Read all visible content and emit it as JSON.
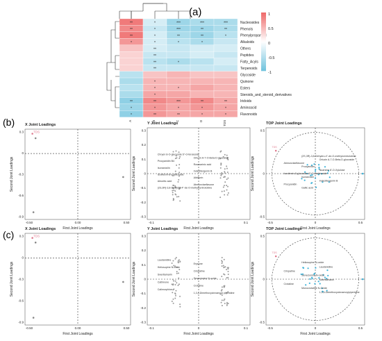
{
  "panel_labels": [
    "(a)",
    "(b)",
    "(c)"
  ],
  "colors": {
    "red": "#ee6b6b",
    "blue": "#8ccde2",
    "pink": "#e07b8f",
    "cyan": "#3fb3d9"
  },
  "chart_data": [
    {
      "type": "heatmap",
      "panel": "(a)",
      "rows": [
        "Nucleosides",
        "Phenols",
        "Phenylpropanoid",
        "Alkaloids",
        "Others",
        "Peptides",
        "Fatty_Acyls",
        "Terpenoids",
        "Glycoside",
        "Quinone",
        "Esters",
        "Steroids_and_steroid_derivatives",
        "Iridoids",
        "Aminoacid",
        "Flavonoids"
      ],
      "cols": [
        "A",
        "B",
        "C",
        "D",
        "TDS"
      ],
      "values": [
        [
          0.9,
          -0.3,
          -0.7,
          -0.6,
          -0.6
        ],
        [
          0.8,
          -0.4,
          -0.7,
          -0.7,
          -0.6
        ],
        [
          0.9,
          -0.3,
          -0.6,
          -0.7,
          -0.5
        ],
        [
          0.7,
          -0.3,
          -0.5,
          -0.6,
          -0.4
        ],
        [
          0.4,
          -0.3,
          -0.4,
          -0.3,
          -0.3
        ],
        [
          0.3,
          -0.4,
          -0.4,
          -0.3,
          -0.4
        ],
        [
          0.3,
          -0.5,
          -0.6,
          -0.5,
          -0.3
        ],
        [
          0.3,
          -0.4,
          -0.4,
          -0.4,
          -0.4
        ],
        [
          -0.5,
          0.4,
          0.5,
          0.4,
          0.4
        ],
        [
          -0.6,
          0.5,
          0.5,
          0.5,
          0.5
        ],
        [
          -0.5,
          0.5,
          0.5,
          0.6,
          0.5
        ],
        [
          -0.6,
          0.6,
          0.6,
          0.5,
          0.5
        ],
        [
          -0.8,
          0.8,
          0.7,
          0.8,
          0.6
        ],
        [
          -0.7,
          0.7,
          0.6,
          0.7,
          0.6
        ],
        [
          -0.8,
          0.7,
          0.6,
          0.6,
          0.6
        ]
      ],
      "stars": [
        [
          "**",
          "*",
          "***",
          "***",
          "***"
        ],
        [
          "**",
          "*",
          "***",
          "**",
          "**"
        ],
        [
          "**",
          "*",
          "**",
          "**",
          "*"
        ],
        [
          "*",
          "*",
          "*",
          "*",
          ""
        ],
        [
          "",
          "**",
          "",
          "",
          ""
        ],
        [
          "",
          "**",
          "",
          "",
          ""
        ],
        [
          "",
          "**",
          "*",
          "",
          ""
        ],
        [
          "",
          "**",
          "",
          "",
          ""
        ],
        [
          "",
          "",
          "",
          "",
          ""
        ],
        [
          "",
          "*",
          "",
          "",
          ""
        ],
        [
          "",
          "*",
          "*",
          "",
          ""
        ],
        [
          "",
          "*",
          "",
          "",
          ""
        ],
        [
          "**",
          "**",
          "***",
          "**",
          "**"
        ],
        [
          "*",
          "*",
          "*",
          "*",
          "*"
        ],
        [
          "*",
          "**",
          "**",
          "*",
          "*"
        ]
      ],
      "legend_ticks": [
        "1",
        "0.5",
        "0",
        "-0.5",
        "-1"
      ],
      "ylim": [
        -1,
        1
      ]
    },
    {
      "type": "scatter",
      "panel": "(b)",
      "title": "X Joint Loadings",
      "xlabel": "First Joint Loadings",
      "ylabel": "Second Joint Loadings",
      "xticks": [
        "-0.50",
        "0.00",
        "0.50"
      ],
      "yticks": [
        "0.3",
        "0",
        "-0.3",
        "-0.6",
        "-0.9"
      ],
      "point_labels": [
        "TDS"
      ]
    },
    {
      "type": "scatter",
      "panel": "(b)",
      "title": "Y Joint Loadings",
      "xlabel": "First Joint Loadings",
      "ylabel": "Second Joint Loadings",
      "xticks": [
        "-0.1",
        "0",
        "0.1"
      ],
      "yticks": [
        "0.3",
        "0.2",
        "0.1",
        "0",
        "-0.1",
        "-0.2",
        "-0.3"
      ],
      "point_labels": [
        "Chryen 8-O-glucoside 6''-O-feruloside",
        "Orlucin A-7-O-Beta-D-glucoside",
        "Procyanidin B4",
        "Rosmarinic acid",
        "Isonarciclin",
        "Indeclitergenin B",
        "Isovitexin-8-o-glucoside",
        "Albiflorin",
        "Aleuritic acid",
        "Abmunvlaeflavone",
        "(2S,3R)-3,8-Dehydro-4''-de-O-methylcentrolobine"
      ]
    },
    {
      "type": "scatter",
      "panel": "(b)",
      "title": "TOP Joint Loadings",
      "xlabel": "First Joint Loadings",
      "ylabel": "Second Joint Loadings",
      "xticks": [
        "-0.5",
        "0",
        "0.5"
      ],
      "yticks": [
        "0.5",
        "0",
        "-0.5"
      ],
      "point_labels": [
        "TDS",
        "(2S,3R)-3,8-Dehydro-4''-de-O-methylcentrolobine",
        "Orlucin A-7-O-Beta-D-glucoside",
        "Abmunvlaeflavone",
        "Procyanidin",
        "Nuarsine 8'-O-Xylulose",
        "Isovitexin-8-glucoside-6''-C-arabinoside",
        "Isonarciclin",
        "Indeclitergenin B",
        "Procyanidin",
        "Gallic acid"
      ]
    },
    {
      "type": "scatter",
      "panel": "(c)",
      "title": "X Joint Loadings",
      "xlabel": "First Joint Loadings",
      "ylabel": "Second Joint Loadings",
      "xticks": [
        "-0.50",
        "0.00",
        "0.50"
      ],
      "yticks": [
        "0.3",
        "0",
        "-0.3",
        "-0.6",
        "-0.9"
      ],
      "point_labels": [
        "TDS"
      ]
    },
    {
      "type": "scatter",
      "panel": "(c)",
      "title": "Y Joint Loadings",
      "xlabel": "First Joint Loadings",
      "ylabel": "Second Joint Loadings",
      "xticks": [
        "-0.1",
        "0",
        "0.1"
      ],
      "yticks": [
        "0.3",
        "0.2",
        "0.1",
        "0",
        "-0.1",
        "-0.2",
        "-0.3"
      ],
      "point_labels": [
        "Laudanidine",
        "Erysone",
        "Heliosupine N-oxide",
        "Crispatine",
        "Swertiamarin",
        "Senecionine N-oxide",
        "Cathinone",
        "Crotaline",
        "Calimorphine",
        "1,3,4-Dimethoxycinnamoyl piperidine"
      ]
    },
    {
      "type": "scatter",
      "panel": "(c)",
      "title": "TOP Joint Loadings",
      "xlabel": "First Joint Loadings",
      "ylabel": "Second Joint Loadings",
      "xticks": [
        "-0.5",
        "0",
        "0.5"
      ],
      "yticks": [
        "0.5",
        "0",
        "-0.5"
      ],
      "point_labels": [
        "TDS",
        "Heliosupine N-oxide",
        "Laudanidine",
        "Crispatine",
        "Senecionine N-oxide",
        "Swertiamarin",
        "Crotaline",
        "Monocrotaline N-Oxide",
        "1,3,4-Dimethoxycinnamoylpiperidine"
      ]
    }
  ]
}
